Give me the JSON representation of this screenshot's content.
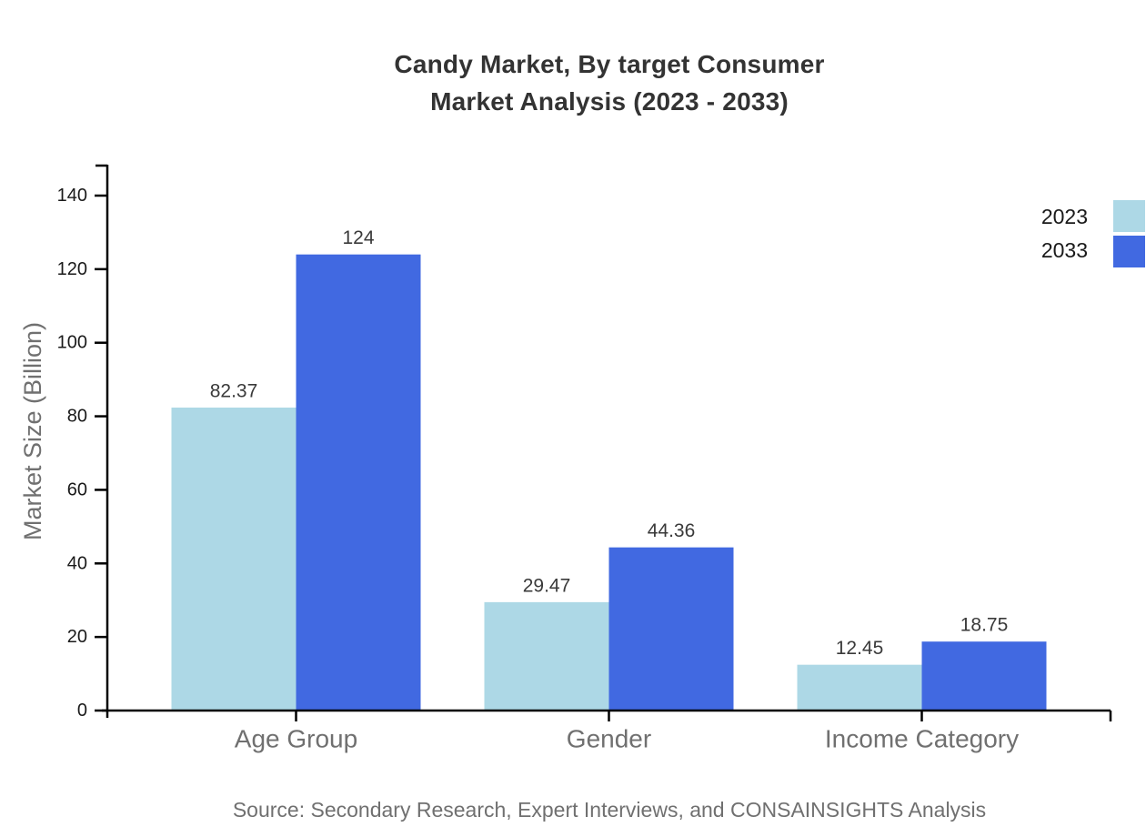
{
  "title": {
    "line1": "Candy Market, By target Consumer",
    "line2": "Market Analysis (2023 - 2033)"
  },
  "source_note": "Source: Secondary Research, Expert Interviews, and CONSAINSIGHTS Analysis",
  "colors": {
    "series_2023": "#ADD8E6",
    "series_2033": "#4169E1",
    "axis": "#000000",
    "title_text": "#333333",
    "muted_text": "#707070",
    "tick_text": "#1a1a1a",
    "value_label_text": "#3a3a3a",
    "background": "#ffffff"
  },
  "chart_data": {
    "type": "bar",
    "title": "Candy Market, By target Consumer Market Analysis (2023 - 2033)",
    "categories": [
      "Age Group",
      "Gender",
      "Income Category"
    ],
    "series": [
      {
        "name": "2023",
        "color": "#ADD8E6",
        "values": [
          82.37,
          29.47,
          12.45
        ]
      },
      {
        "name": "2033",
        "color": "#4169E1",
        "values": [
          124,
          44.36,
          18.75
        ]
      }
    ],
    "xlabel": "",
    "ylabel": "Market Size (Billion)",
    "ylim": [
      0,
      148
    ],
    "yticks": [
      0,
      20,
      40,
      60,
      80,
      100,
      120,
      140
    ],
    "grid": false,
    "legend_position": "top-right",
    "legend": [
      "2023",
      "2033"
    ]
  }
}
